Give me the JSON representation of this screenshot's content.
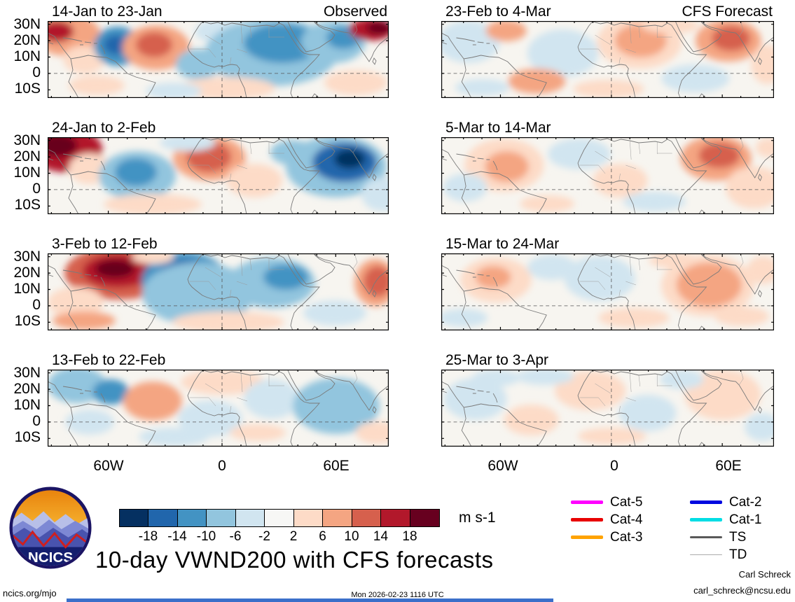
{
  "chart_data": {
    "type": "heatmap",
    "title": "10-day VWND200 with CFS forecasts",
    "column_headings": [
      "Observed",
      "CFS Forecast"
    ],
    "y_ticks": [
      "30N",
      "20N",
      "10N",
      "0",
      "10S"
    ],
    "x_ticks": [
      "60W",
      "0",
      "60E"
    ],
    "units": "m s-1",
    "lon_range": [
      -92,
      88
    ],
    "lat_range": [
      -15,
      32
    ],
    "colorbar": {
      "tick_labels": [
        "-18",
        "-14",
        "-10",
        "-6",
        "-2",
        "2",
        "6",
        "10",
        "14",
        "18"
      ],
      "colors": [
        "#053061",
        "#2166ac",
        "#4393c3",
        "#92c5de",
        "#d1e5f0",
        "#f7f7f5",
        "#fddbc7",
        "#f4a582",
        "#d6604d",
        "#b2182b",
        "#67001f"
      ]
    },
    "panels": [
      {
        "title": "14-Jan to 23-Jan",
        "column": "Observed",
        "blobs": [
          [
            28,
            20,
            48,
            30,
            7
          ],
          [
            13,
            15,
            24,
            15,
            9
          ],
          [
            52,
            55,
            30,
            20,
            6
          ],
          [
            100,
            36,
            34,
            28,
            2
          ],
          [
            98,
            34,
            18,
            14,
            1
          ],
          [
            155,
            38,
            48,
            32,
            7
          ],
          [
            152,
            34,
            26,
            18,
            8
          ],
          [
            215,
            62,
            32,
            22,
            3
          ],
          [
            250,
            15,
            40,
            18,
            4
          ],
          [
            320,
            45,
            95,
            48,
            3
          ],
          [
            335,
            32,
            55,
            28,
            2
          ],
          [
            408,
            30,
            46,
            30,
            3
          ],
          [
            422,
            24,
            24,
            16,
            2
          ],
          [
            462,
            12,
            32,
            16,
            9
          ],
          [
            473,
            10,
            18,
            9,
            10
          ],
          [
            255,
            96,
            70,
            16,
            6
          ],
          [
            440,
            88,
            45,
            18,
            6
          ],
          [
            70,
            92,
            40,
            14,
            6
          ],
          [
            180,
            100,
            40,
            12,
            4
          ]
        ]
      },
      {
        "title": "24-Jan to 2-Feb",
        "column": "Observed",
        "blobs": [
          [
            26,
            18,
            52,
            32,
            9
          ],
          [
            14,
            12,
            28,
            16,
            10
          ],
          [
            60,
            45,
            30,
            22,
            6
          ],
          [
            128,
            55,
            55,
            35,
            3
          ],
          [
            126,
            50,
            30,
            20,
            2
          ],
          [
            231,
            30,
            52,
            32,
            7
          ],
          [
            230,
            28,
            32,
            22,
            8
          ],
          [
            295,
            62,
            40,
            24,
            6
          ],
          [
            350,
            22,
            32,
            18,
            3
          ],
          [
            412,
            42,
            72,
            44,
            3
          ],
          [
            424,
            36,
            46,
            28,
            1
          ],
          [
            431,
            31,
            22,
            14,
            0
          ],
          [
            150,
            96,
            70,
            15,
            6
          ],
          [
            478,
            82,
            30,
            24,
            4
          ],
          [
            200,
            8,
            40,
            12,
            4
          ]
        ]
      },
      {
        "title": "3-Feb to 12-Feb",
        "column": "Observed",
        "blobs": [
          [
            102,
            28,
            78,
            38,
            8
          ],
          [
            100,
            25,
            50,
            24,
            9
          ],
          [
            96,
            22,
            28,
            13,
            10
          ],
          [
            40,
            70,
            40,
            22,
            6
          ],
          [
            196,
            40,
            62,
            42,
            2
          ],
          [
            196,
            35,
            40,
            26,
            1
          ],
          [
            198,
            32,
            20,
            13,
            0
          ],
          [
            215,
            58,
            80,
            45,
            3
          ],
          [
            320,
            42,
            62,
            36,
            3
          ],
          [
            340,
            34,
            32,
            18,
            2
          ],
          [
            468,
            42,
            30,
            34,
            7
          ],
          [
            471,
            40,
            20,
            22,
            8
          ],
          [
            258,
            98,
            80,
            15,
            6
          ],
          [
            52,
            96,
            45,
            13,
            7
          ],
          [
            150,
            5,
            30,
            10,
            6
          ],
          [
            410,
            85,
            45,
            18,
            4
          ]
        ]
      },
      {
        "title": "13-Feb to 22-Feb",
        "column": "Observed",
        "blobs": [
          [
            42,
            22,
            42,
            26,
            3
          ],
          [
            90,
            32,
            26,
            18,
            2
          ],
          [
            150,
            45,
            42,
            28,
            7
          ],
          [
            250,
            18,
            60,
            18,
            6
          ],
          [
            232,
            70,
            46,
            26,
            4
          ],
          [
            320,
            42,
            40,
            28,
            4
          ],
          [
            412,
            52,
            62,
            40,
            3
          ],
          [
            470,
            90,
            30,
            16,
            6
          ],
          [
            180,
            96,
            50,
            13,
            4
          ],
          [
            60,
            75,
            35,
            18,
            4
          ],
          [
            300,
            90,
            40,
            12,
            6
          ]
        ]
      },
      {
        "title": "23-Feb to 4-Mar",
        "column": "CFS Forecast",
        "blobs": [
          [
            40,
            30,
            46,
            30,
            4
          ],
          [
            95,
            14,
            30,
            15,
            7
          ],
          [
            178,
            46,
            52,
            34,
            4
          ],
          [
            290,
            30,
            62,
            38,
            6
          ],
          [
            292,
            28,
            38,
            24,
            7
          ],
          [
            420,
            28,
            48,
            30,
            7
          ],
          [
            424,
            25,
            28,
            18,
            8
          ],
          [
            477,
            62,
            24,
            28,
            6
          ],
          [
            140,
            86,
            42,
            18,
            7
          ],
          [
            245,
            97,
            52,
            13,
            6
          ],
          [
            372,
            82,
            50,
            20,
            4
          ],
          [
            335,
            7,
            42,
            11,
            6
          ],
          [
            60,
            95,
            40,
            12,
            4
          ]
        ]
      },
      {
        "title": "5-Mar to 14-Mar",
        "column": "CFS Forecast",
        "blobs": [
          [
            92,
            40,
            58,
            38,
            6
          ],
          [
            96,
            42,
            32,
            22,
            7
          ],
          [
            35,
            72,
            32,
            20,
            4
          ],
          [
            202,
            24,
            46,
            22,
            4
          ],
          [
            262,
            62,
            40,
            24,
            6
          ],
          [
            402,
            30,
            52,
            32,
            7
          ],
          [
            407,
            26,
            30,
            18,
            8
          ],
          [
            458,
            72,
            42,
            30,
            6
          ],
          [
            312,
            92,
            46,
            14,
            4
          ],
          [
            155,
            95,
            40,
            12,
            6
          ],
          [
            480,
            15,
            20,
            14,
            6
          ]
        ]
      },
      {
        "title": "15-Mar to 24-Mar",
        "column": "CFS Forecast",
        "blobs": [
          [
            80,
            38,
            52,
            32,
            6
          ],
          [
            76,
            34,
            26,
            16,
            7
          ],
          [
            162,
            20,
            36,
            18,
            4
          ],
          [
            232,
            36,
            52,
            32,
            4
          ],
          [
            390,
            46,
            68,
            44,
            6
          ],
          [
            392,
            45,
            48,
            32,
            7
          ],
          [
            471,
            24,
            24,
            20,
            6
          ],
          [
            282,
            92,
            52,
            14,
            6
          ],
          [
            32,
            92,
            36,
            13,
            4
          ],
          [
            340,
            10,
            36,
            11,
            6
          ],
          [
            440,
            90,
            40,
            14,
            6
          ]
        ]
      },
      {
        "title": "25-Mar to 3-Apr",
        "column": "CFS Forecast",
        "blobs": [
          [
            50,
            42,
            46,
            30,
            4
          ],
          [
            132,
            72,
            40,
            22,
            6
          ],
          [
            218,
            30,
            52,
            28,
            6
          ],
          [
            302,
            62,
            42,
            26,
            4
          ],
          [
            412,
            36,
            56,
            36,
            6
          ],
          [
            352,
            14,
            32,
            14,
            4
          ],
          [
            470,
            82,
            26,
            20,
            4
          ],
          [
            152,
            10,
            42,
            12,
            4
          ],
          [
            250,
            95,
            50,
            12,
            6
          ],
          [
            80,
            12,
            35,
            12,
            4
          ]
        ]
      }
    ],
    "legend": [
      {
        "label": "Cat-5",
        "color": "#ff00ff",
        "weight": 5
      },
      {
        "label": "Cat-4",
        "color": "#e80000",
        "weight": 5
      },
      {
        "label": "Cat-3",
        "color": "#ffa300",
        "weight": 5
      },
      {
        "label": "Cat-2",
        "color": "#0008e0",
        "weight": 5
      },
      {
        "label": "Cat-1",
        "color": "#00dde4",
        "weight": 5
      },
      {
        "label": "TS",
        "color": "#595959",
        "weight": 2.5
      },
      {
        "label": "TD",
        "color": "#acacac",
        "weight": 1.2
      }
    ]
  },
  "logo": {
    "text": "NCICS"
  },
  "footer": {
    "site": "ncics.org/mjo",
    "timestamp": "Mon 2026-02-23 1116 UTC",
    "credit_name": "Carl Schreck",
    "credit_email": "carl_schreck@ncsu.edu"
  }
}
